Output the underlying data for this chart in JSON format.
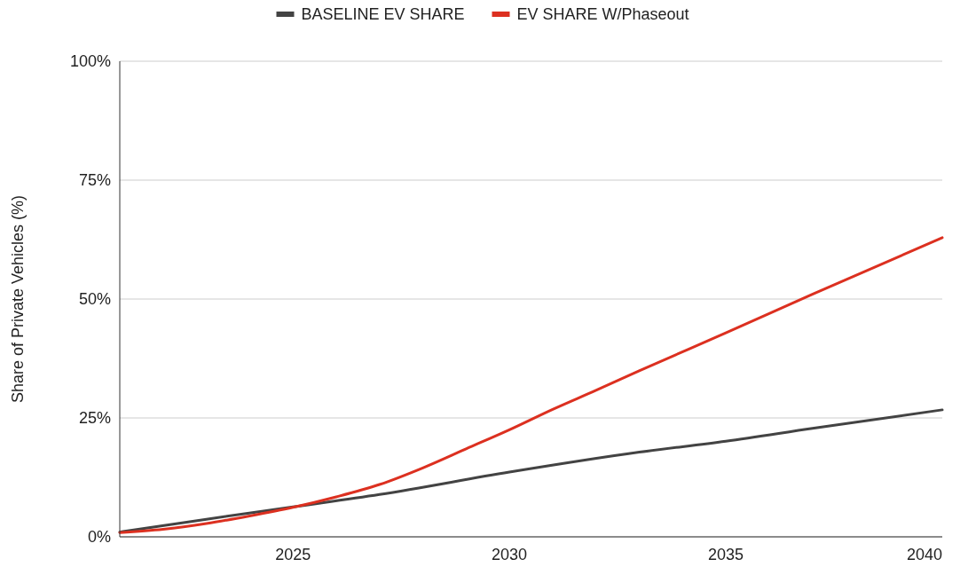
{
  "chart_data": {
    "type": "line",
    "ylabel": "Share of Private Vehicles (%)",
    "xlim": [
      2021,
      2040
    ],
    "xticks": [
      2025,
      2030,
      2035,
      2040
    ],
    "ylim": [
      0,
      100
    ],
    "yticks": [
      {
        "value": 0,
        "label": "0%"
      },
      {
        "value": 25,
        "label": "25%"
      },
      {
        "value": 50,
        "label": "50%"
      },
      {
        "value": 75,
        "label": "75%"
      },
      {
        "value": 100,
        "label": "100%"
      }
    ],
    "grid": "y",
    "legend": "top",
    "line_style": "solid",
    "marker": "none",
    "series": [
      {
        "name": "BASELINE EV SHARE",
        "color": "#434343",
        "x": [
          2021,
          2023,
          2025,
          2027,
          2030,
          2033,
          2035,
          2037,
          2040
        ],
        "values": [
          1,
          3.7,
          6.3,
          8.9,
          13.6,
          17.8,
          20.1,
          22.8,
          26.7
        ]
      },
      {
        "name": "EV SHARE W/Phaseout",
        "color": "#dc3020",
        "x": [
          2021,
          2022,
          2023,
          2024,
          2025,
          2026,
          2027,
          2028,
          2029,
          2030,
          2031,
          2032,
          2033,
          2035,
          2037,
          2040
        ],
        "values": [
          0.9,
          1.6,
          2.8,
          4.4,
          6.2,
          8.4,
          11,
          14.5,
          18.5,
          22.5,
          26.8,
          30.8,
          34.9,
          42.9,
          51,
          62.9
        ]
      }
    ]
  }
}
